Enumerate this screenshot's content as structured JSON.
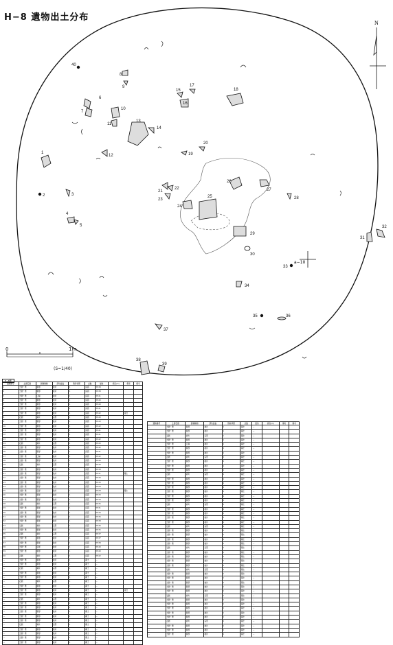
{
  "title": "H−8 遺物出土分布",
  "north_label": "N",
  "scale": {
    "start": "0",
    "end": "1m",
    "ratio": "(S=1/40)"
  },
  "datum_point": "a−10",
  "artifact_numbers": [
    "1",
    "2",
    "3",
    "4",
    "5",
    "6",
    "7",
    "8",
    "9",
    "10",
    "11",
    "12",
    "13",
    "14",
    "15",
    "16",
    "17",
    "18",
    "19",
    "20",
    "21",
    "22",
    "23",
    "24",
    "25",
    "26",
    "27",
    "28",
    "29",
    "30",
    "31",
    "32",
    "33",
    "34",
    "35",
    "36",
    "37",
    "38",
    "39",
    "40"
  ],
  "table1": {
    "caption": "H−8遺",
    "headers": [
      "遺物番号",
      "土器石器",
      "器種種類",
      "部位最長",
      "残存状態",
      "点数",
      "層位",
      "標高(m)",
      "備考",
      "備考"
    ],
    "rows": [
      [
        "1",
        "土器・甕",
        "胴部",
        "破片",
        "1",
        "床面",
        "35.39",
        "",
        ""
      ],
      [
        "2",
        "土器・甕",
        "胴部",
        "破片",
        "1",
        "床面",
        "35.38",
        "",
        ""
      ],
      [
        "3",
        "土器・甕",
        "口縁",
        "破片",
        "1",
        "床面",
        "35.41",
        "",
        ""
      ],
      [
        "4",
        "土器・甕",
        "胴部",
        "破片",
        "1",
        "床面",
        "35.40",
        "",
        ""
      ],
      [
        "5",
        "土器・甕",
        "胴部",
        "破片",
        "1",
        "床面",
        "35.40",
        "",
        ""
      ],
      [
        "6",
        "土器・甕",
        "胴部",
        "破片",
        "1",
        "床面",
        "35.41",
        "",
        ""
      ],
      [
        "7",
        "土器・甕",
        "胴部",
        "破片",
        "1",
        "床面",
        "35.42",
        "",
        "接合"
      ],
      [
        "8",
        "石器",
        "剥片",
        "完形",
        "1",
        "床面",
        "35.43",
        "",
        ""
      ],
      [
        "9",
        "土器・甕",
        "胴部",
        "破片",
        "1",
        "床面",
        "35.43",
        "",
        ""
      ],
      [
        "10",
        "土器・甕",
        "胴部",
        "破片",
        "1",
        "床面",
        "35.42",
        "",
        ""
      ],
      [
        "11",
        "土器・甕",
        "胴部",
        "破片",
        "1",
        "床面",
        "35.41",
        "",
        ""
      ],
      [
        "12",
        "土器・甕",
        "胴部",
        "破片",
        "1",
        "床面",
        "35.41",
        "",
        ""
      ],
      [
        "13",
        "土器・甕",
        "胴部",
        "破片",
        "1",
        "床面",
        "35.42",
        "",
        ""
      ],
      [
        "14",
        "石器",
        "剥片",
        "完形",
        "1",
        "床面",
        "35.43",
        "",
        ""
      ],
      [
        "15",
        "土器・甕",
        "胴部",
        "破片",
        "1",
        "床面",
        "35.42",
        "",
        ""
      ],
      [
        "16",
        "土器・甕",
        "胴部",
        "破片",
        "1",
        "床面",
        "35.41",
        "",
        ""
      ],
      [
        "17",
        "土器・甕",
        "口縁",
        "破片",
        "1",
        "床面",
        "35.42",
        "",
        ""
      ],
      [
        "18",
        "土器・甕",
        "胴部",
        "破片",
        "1",
        "床面",
        "35.40",
        "",
        ""
      ],
      [
        "19",
        "石器",
        "剥片",
        "完形",
        "1",
        "床面",
        "35.40",
        "",
        ""
      ],
      [
        "20",
        "土器・甕",
        "胴部",
        "破片",
        "1",
        "床面",
        "35.39",
        "",
        ""
      ],
      [
        "21",
        "土器・甕",
        "胴部",
        "破片",
        "1",
        "床面",
        "35.31",
        "",
        "覆土"
      ],
      [
        "22",
        "土器・甕",
        "胴部",
        "破片",
        "1",
        "床面",
        "35.30",
        "",
        ""
      ],
      [
        "23",
        "土器・甕",
        "胴部",
        "破片",
        "1",
        "床面",
        "35.30",
        "",
        ""
      ],
      [
        "24",
        "土器・甕",
        "胴部",
        "破片",
        "1",
        "床面",
        "35.29",
        "",
        ""
      ],
      [
        "25",
        "土器・甕",
        "底部",
        "破片",
        "1",
        "床面",
        "35.28",
        "",
        "覆土"
      ],
      [
        "26",
        "土器・甕",
        "胴部",
        "破片",
        "1",
        "床面",
        "35.33",
        "",
        ""
      ],
      [
        "27",
        "土器・甕",
        "胴部",
        "破片",
        "1",
        "床面",
        "35.34",
        "",
        ""
      ],
      [
        "28",
        "石器",
        "剥片",
        "完形",
        "1",
        "床面",
        "35.35",
        "",
        ""
      ],
      [
        "29",
        "土器・甕",
        "胴部",
        "破片",
        "1",
        "床面",
        "35.31",
        "",
        ""
      ],
      [
        "30",
        "土器・甕",
        "胴部",
        "破片",
        "1",
        "床面",
        "35.30",
        "",
        ""
      ],
      [
        "31",
        "土器・甕",
        "胴部",
        "破片",
        "1",
        "床面",
        "35.36",
        "",
        ""
      ],
      [
        "32",
        "土器・甕",
        "胴部",
        "破片",
        "1",
        "床面",
        "35.38",
        "",
        ""
      ],
      [
        "33",
        "石器",
        "剥片",
        "完形",
        "1",
        "床面",
        "35.36",
        "",
        ""
      ],
      [
        "34",
        "土器・甕",
        "胴部",
        "破片",
        "1",
        "床面",
        "35.35",
        "",
        ""
      ],
      [
        "35",
        "石器",
        "剥片",
        "完形",
        "1",
        "床面",
        "35.37",
        "",
        ""
      ],
      [
        "36",
        "土器・甕",
        "胴部",
        "破片",
        "1",
        "床面",
        "35.37",
        "",
        ""
      ],
      [
        "37",
        "土器・甕",
        "胴部",
        "破片",
        "1",
        "床面",
        "35.38",
        "",
        ""
      ],
      [
        "38",
        "土器・甕",
        "底部",
        "破片",
        "1",
        "床面",
        "35.40",
        "",
        ""
      ],
      [
        "39",
        "土器・甕",
        "胴部",
        "破片",
        "1",
        "床面",
        "35.40",
        "",
        ""
      ],
      [
        "40",
        "石器",
        "剥片",
        "完形",
        "1",
        "床面",
        "35.42",
        "",
        ""
      ],
      [
        "—",
        "土器・甕",
        "胴部",
        "破片",
        "1",
        "覆土",
        "—",
        "",
        ""
      ],
      [
        "—",
        "土器・甕",
        "胴部",
        "破片",
        "1",
        "覆土",
        "—",
        "",
        ""
      ],
      [
        "—",
        "石器",
        "剥片",
        "完形",
        "1",
        "覆土",
        "—",
        "",
        ""
      ],
      [
        "—",
        "土器・甕",
        "胴部",
        "破片",
        "1",
        "覆土",
        "—",
        "",
        ""
      ],
      [
        "—",
        "土器・甕",
        "胴部",
        "破片",
        "1",
        "覆土",
        "—",
        "",
        ""
      ],
      [
        "—",
        "石器",
        "剥片",
        "完形",
        "1",
        "覆土",
        "—",
        "",
        ""
      ],
      [
        "—",
        "土器・甕",
        "胴部",
        "破片",
        "1",
        "覆土",
        "—",
        "",
        ""
      ],
      [
        "—",
        "土器・甕",
        "胴部",
        "破片",
        "1",
        "覆土",
        "—",
        "",
        "接合"
      ],
      [
        "—",
        "土器・甕",
        "胴部",
        "破片",
        "1",
        "覆土",
        "—",
        "",
        ""
      ],
      [
        "—",
        "石器",
        "剥片",
        "完形",
        "1",
        "覆土",
        "—",
        "",
        ""
      ],
      [
        "—",
        "土器・甕",
        "胴部",
        "破片",
        "1",
        "覆土",
        "—",
        "",
        ""
      ],
      [
        "—",
        "土器・甕",
        "胴部",
        "破片",
        "1",
        "覆土",
        "—",
        "",
        ""
      ],
      [
        "—",
        "土器・甕",
        "胴部",
        "破片",
        "1",
        "覆土",
        "—",
        "",
        ""
      ],
      [
        "—",
        "土器・甕",
        "胴部",
        "破片",
        "1",
        "覆土",
        "—",
        "",
        ""
      ],
      [
        "—",
        "土器・甕",
        "胴部",
        "破片",
        "1",
        "覆土",
        "—",
        "",
        ""
      ],
      [
        "—",
        "石器",
        "剥片",
        "完形",
        "1",
        "覆土",
        "—",
        "",
        ""
      ],
      [
        "—",
        "土器・甕",
        "胴部",
        "破片",
        "1",
        "覆土",
        "—",
        "",
        ""
      ],
      [
        "—",
        "土器・甕",
        "胴部",
        "破片",
        "1",
        "覆土",
        "—",
        "",
        ""
      ],
      [
        "—",
        "土器・甕",
        "胴部",
        "破片",
        "1",
        "覆土",
        "—",
        "",
        ""
      ],
      [
        "—",
        "土器・甕",
        "胴部",
        "破片",
        "1",
        "覆土",
        "—",
        "",
        ""
      ]
    ]
  },
  "table2": {
    "headers": [
      "遺物番号",
      "土器石器",
      "器種種類",
      "部位最長",
      "残存状態",
      "点数",
      "層位",
      "標高(m)",
      "備考",
      "備考"
    ],
    "rows": [
      [
        "—",
        "土器・甕",
        "胴部",
        "破片",
        "1",
        "覆土",
        "—",
        "",
        ""
      ],
      [
        "—",
        "土器・甕",
        "胴部",
        "破片",
        "1",
        "覆土",
        "—",
        "",
        ""
      ],
      [
        "—",
        "石器",
        "剥片",
        "完形",
        "1",
        "覆土",
        "—",
        "",
        ""
      ],
      [
        "—",
        "土器・甕",
        "胴部",
        "破片",
        "1",
        "覆土",
        "—",
        "",
        ""
      ],
      [
        "—",
        "土器・甕",
        "口縁",
        "破片",
        "1",
        "覆土",
        "—",
        "",
        ""
      ],
      [
        "—",
        "土器・甕",
        "胴部",
        "破片",
        "1",
        "覆土",
        "—",
        "",
        ""
      ],
      [
        "—",
        "土器・甕",
        "胴部",
        "破片",
        "1",
        "覆土",
        "—",
        "",
        ""
      ],
      [
        "—",
        "石器",
        "剥片",
        "完形",
        "1",
        "覆土",
        "—",
        "",
        ""
      ],
      [
        "—",
        "土器・甕",
        "胴部",
        "破片",
        "1",
        "覆土",
        "—",
        "",
        ""
      ],
      [
        "—",
        "土器・甕",
        "胴部",
        "破片",
        "1",
        "覆土",
        "—",
        "",
        ""
      ],
      [
        "—",
        "土器・甕",
        "胴部",
        "破片",
        "1",
        "覆土",
        "—",
        "",
        ""
      ],
      [
        "—",
        "石器",
        "剥片",
        "完形",
        "1",
        "覆土",
        "—",
        "",
        ""
      ],
      [
        "—",
        "土器・甕",
        "胴部",
        "破片",
        "1",
        "覆土",
        "—",
        "",
        ""
      ],
      [
        "—",
        "土器・甕",
        "胴部",
        "破片",
        "1",
        "覆土",
        "—",
        "",
        ""
      ],
      [
        "—",
        "土器・甕",
        "胴部",
        "破片",
        "1",
        "覆土",
        "—",
        "",
        ""
      ],
      [
        "—",
        "土器・甕",
        "胴部",
        "破片",
        "1",
        "覆土",
        "—",
        "",
        ""
      ],
      [
        "—",
        "土器・甕",
        "胴部",
        "破片",
        "1",
        "覆土",
        "—",
        "",
        "",
        ""
      ],
      [
        "—",
        "土器・甕",
        "胴部",
        "破片",
        "1",
        "覆土",
        "—",
        "",
        ""
      ],
      [
        "—",
        "石器",
        "剥片",
        "完形",
        "1",
        "覆土",
        "—",
        "",
        ""
      ],
      [
        "—",
        "土器・甕",
        "胴部",
        "破片",
        "1",
        "覆土",
        "—",
        "",
        ""
      ],
      [
        "—",
        "土器・甕",
        "胴部",
        "破片",
        "1",
        "覆土",
        "—",
        "",
        ""
      ],
      [
        "—",
        "土器・甕",
        "胴部",
        "破片",
        "1",
        "覆土",
        "—",
        "",
        ""
      ],
      [
        "—",
        "土器・甕",
        "胴部",
        "破片",
        "1",
        "覆土",
        "—",
        "",
        ""
      ],
      [
        "—",
        "石器",
        "剥片",
        "完形",
        "1",
        "覆土",
        "—",
        "",
        ""
      ],
      [
        "—",
        "土器・甕",
        "胴部",
        "破片",
        "1",
        "覆土",
        "—",
        "",
        ""
      ],
      [
        "—",
        "土器・甕",
        "胴部",
        "破片",
        "1",
        "覆土",
        "—",
        "",
        ""
      ],
      [
        "—",
        "土器・甕",
        "胴部",
        "破片",
        "1",
        "覆土",
        "—",
        "",
        ""
      ],
      [
        "—",
        "土器・甕",
        "胴部",
        "破片",
        "1",
        "覆土",
        "—",
        "",
        ""
      ],
      [
        "—",
        "石器",
        "剥片",
        "完形",
        "1",
        "覆土",
        "—",
        "",
        ""
      ],
      [
        "—",
        "土器・甕",
        "胴部",
        "破片",
        "1",
        "覆土",
        "—",
        "",
        ""
      ],
      [
        "—",
        "土器・甕",
        "胴部",
        "破片",
        "1",
        "覆土",
        "—",
        "",
        ""
      ],
      [
        "—",
        "土器・甕",
        "胴部",
        "破片",
        "1",
        "覆土",
        "—",
        "",
        ""
      ],
      [
        "—",
        "土器・甕",
        "胴部",
        "破片",
        "1",
        "覆土",
        "—",
        "",
        ""
      ],
      [
        "—",
        "石器",
        "剥片",
        "完形",
        "1",
        "覆土",
        "—",
        "",
        ""
      ],
      [
        "—",
        "土器・甕",
        "胴部",
        "破片",
        "1",
        "覆土",
        "—",
        "",
        ""
      ],
      [
        "—",
        "土器・甕",
        "胴部",
        "破片",
        "1",
        "覆土",
        "—",
        "",
        ""
      ],
      [
        "—",
        "土器・甕",
        "胴部",
        "破片",
        "1",
        "覆土",
        "—",
        "",
        ""
      ],
      [
        "—",
        "土器・甕",
        "胴部",
        "破片",
        "1",
        "覆土",
        "—",
        "",
        ""
      ],
      [
        "—",
        "土器・甕",
        "胴部",
        "破片",
        "1",
        "覆土",
        "—",
        "",
        ""
      ],
      [
        "—",
        "石器",
        "剥片",
        "完形",
        "1",
        "覆土",
        "—",
        "",
        ""
      ],
      [
        "—",
        "土器・甕",
        "胴部",
        "破片",
        "1",
        "覆土",
        "—",
        "",
        ""
      ],
      [
        "—",
        "土器・甕",
        "胴部",
        "破片",
        "1",
        "覆土",
        "—",
        "",
        ""
      ],
      [
        "—",
        "土器・甕",
        "胴部",
        "破片",
        "1",
        "覆土",
        "—",
        "",
        ""
      ],
      [
        "—",
        "土器・甕",
        "胴部",
        "破片",
        "1",
        "覆土",
        "—",
        "",
        ""
      ],
      [
        "—",
        "土器・甕",
        "胴部",
        "破片",
        "1",
        "覆土",
        "—",
        "",
        ""
      ],
      [
        "—",
        "石器",
        "剥片",
        "完形",
        "1",
        "覆土",
        "—",
        "",
        ""
      ],
      [
        "—",
        "土器・甕",
        "胴部",
        "破片",
        "1",
        "覆土",
        "—",
        "",
        ""
      ],
      [
        "—",
        "土器・甕",
        "胴部",
        "破片",
        "1",
        "覆土",
        "—",
        "",
        ""
      ],
      [
        "—",
        "土器・甕",
        "胴部",
        "破片",
        "1",
        "覆土",
        "—",
        "",
        ""
      ]
    ]
  }
}
